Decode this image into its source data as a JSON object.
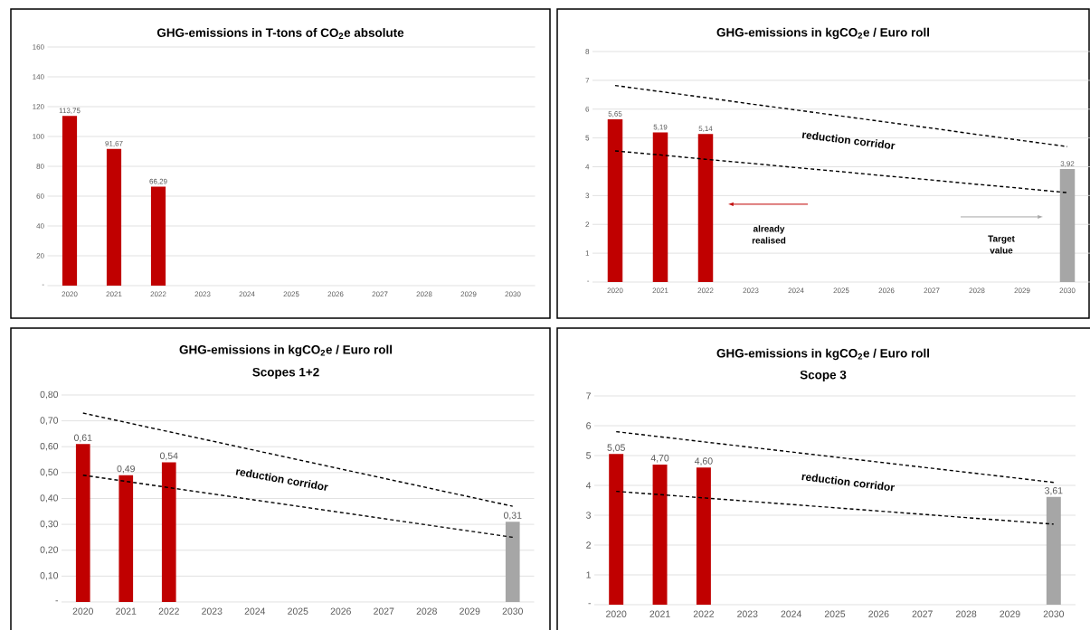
{
  "chart_data": [
    {
      "type": "bar",
      "title": "GHG-emissions in T-tons of CO$_{2}$e absolute",
      "categories": [
        "2020",
        "2021",
        "2022",
        "2023",
        "2024",
        "2025",
        "2026",
        "2027",
        "2028",
        "2029",
        "2030"
      ],
      "series": [
        {
          "values": [
            113.75,
            91.67,
            66.29,
            null,
            null,
            null,
            null,
            null,
            null,
            null,
            null
          ],
          "colors": [
            "#c00000",
            "#c00000",
            "#c00000",
            "#c00000",
            "#c00000",
            "#c00000",
            "#c00000",
            "#c00000",
            "#c00000",
            "#c00000",
            "#c00000"
          ],
          "value_labels": [
            "113,75",
            "91,67",
            "66,29",
            null,
            null,
            null,
            null,
            null,
            null,
            null,
            null
          ]
        }
      ],
      "ylim": [
        0,
        160
      ],
      "yticks": [
        {
          "value": 0,
          "label": "-"
        },
        20,
        40,
        60,
        80,
        100,
        120,
        140,
        160
      ],
      "grid": "y"
    },
    {
      "type": "bar",
      "title": "GHG-emissions in kgCO$_{2}$e / Euro roll",
      "categories": [
        "2020",
        "2021",
        "2022",
        "2023",
        "2024",
        "2025",
        "2026",
        "2027",
        "2028",
        "2029",
        "2030"
      ],
      "series": [
        {
          "values": [
            5.65,
            5.19,
            5.14,
            null,
            null,
            null,
            null,
            null,
            null,
            null,
            3.92
          ],
          "colors": [
            "#c00000",
            "#c00000",
            "#c00000",
            "#c00000",
            "#c00000",
            "#c00000",
            "#c00000",
            "#c00000",
            "#c00000",
            "#c00000",
            "#a6a6a6"
          ],
          "value_labels": [
            "5,65",
            "5,19",
            "5,14",
            null,
            null,
            null,
            null,
            null,
            null,
            null,
            "3,92"
          ]
        },
        {
          "type": "line",
          "values": [
            6.82,
            6.61,
            6.4,
            6.18,
            5.97,
            5.76,
            5.55,
            5.34,
            5.12,
            4.91,
            4.7
          ],
          "color": "#000000",
          "line_style": "dashed"
        },
        {
          "type": "line",
          "values": [
            4.55,
            4.41,
            4.26,
            4.12,
            3.97,
            3.83,
            3.68,
            3.54,
            3.39,
            3.25,
            3.1
          ],
          "color": "#000000",
          "line_style": "dashed"
        }
      ],
      "ylim": [
        0,
        8
      ],
      "yticks": [
        {
          "value": 0,
          "label": "-"
        },
        1,
        2,
        3,
        4,
        5,
        6,
        7,
        8
      ],
      "grid": "y",
      "annotations": [
        "reduction corridor",
        "already realised",
        "Target value"
      ]
    },
    {
      "type": "bar",
      "title": "GHG-emissions in kgCO$_{2}$e / Euro roll",
      "subtitle": "Scopes 1+2",
      "categories": [
        "2020",
        "2021",
        "2022",
        "2023",
        "2024",
        "2025",
        "2026",
        "2027",
        "2028",
        "2029",
        "2030"
      ],
      "series": [
        {
          "values": [
            0.61,
            0.49,
            0.54,
            null,
            null,
            null,
            null,
            null,
            null,
            null,
            0.31
          ],
          "colors": [
            "#c00000",
            "#c00000",
            "#c00000",
            "#c00000",
            "#c00000",
            "#c00000",
            "#c00000",
            "#c00000",
            "#c00000",
            "#c00000",
            "#a6a6a6"
          ],
          "value_labels": [
            "0,61",
            "0,49",
            "0,54",
            null,
            null,
            null,
            null,
            null,
            null,
            null,
            "0,31"
          ]
        },
        {
          "type": "line",
          "values": [
            0.73,
            0.694,
            0.658,
            0.622,
            0.586,
            0.55,
            0.514,
            0.478,
            0.442,
            0.406,
            0.37
          ],
          "color": "#000000",
          "line_style": "dashed"
        },
        {
          "type": "line",
          "values": [
            0.49,
            0.466,
            0.442,
            0.418,
            0.394,
            0.37,
            0.346,
            0.322,
            0.298,
            0.274,
            0.25
          ],
          "color": "#000000",
          "line_style": "dashed"
        }
      ],
      "ylim": [
        0,
        0.8
      ],
      "yticks": [
        {
          "value": 0,
          "label": "-"
        },
        {
          "value": 0.1,
          "label": "0,10"
        },
        {
          "value": 0.2,
          "label": "0,20"
        },
        {
          "value": 0.3,
          "label": "0,30"
        },
        {
          "value": 0.4,
          "label": "0,40"
        },
        {
          "value": 0.5,
          "label": "0,50"
        },
        {
          "value": 0.6,
          "label": "0,60"
        },
        {
          "value": 0.7,
          "label": "0,70"
        },
        {
          "value": 0.8,
          "label": "0,80"
        }
      ],
      "grid": "y",
      "annotations": [
        "reduction corridor"
      ]
    },
    {
      "type": "bar",
      "title": "GHG-emissions in kgCO$_{2}$e / Euro roll",
      "subtitle": "Scope 3",
      "categories": [
        "2020",
        "2021",
        "2022",
        "2023",
        "2024",
        "2025",
        "2026",
        "2027",
        "2028",
        "2029",
        "2030"
      ],
      "series": [
        {
          "values": [
            5.05,
            4.7,
            4.6,
            null,
            null,
            null,
            null,
            null,
            null,
            null,
            3.61
          ],
          "colors": [
            "#c00000",
            "#c00000",
            "#c00000",
            "#c00000",
            "#c00000",
            "#c00000",
            "#c00000",
            "#c00000",
            "#c00000",
            "#c00000",
            "#a6a6a6"
          ],
          "value_labels": [
            "5,05",
            "4,70",
            "4,60",
            null,
            null,
            null,
            null,
            null,
            null,
            null,
            "3,61"
          ]
        },
        {
          "type": "line",
          "values": [
            5.8,
            5.63,
            5.46,
            5.29,
            5.12,
            4.95,
            4.78,
            4.61,
            4.44,
            4.27,
            4.1
          ],
          "color": "#000000",
          "line_style": "dashed"
        },
        {
          "type": "line",
          "values": [
            3.8,
            3.69,
            3.58,
            3.47,
            3.36,
            3.25,
            3.14,
            3.03,
            2.92,
            2.81,
            2.7
          ],
          "color": "#000000",
          "line_style": "dashed"
        }
      ],
      "ylim": [
        0,
        7
      ],
      "yticks": [
        {
          "value": 0,
          "label": "-"
        },
        1,
        2,
        3,
        4,
        5,
        6,
        7
      ],
      "grid": "y",
      "annotations": [
        "reduction corridor"
      ]
    }
  ]
}
